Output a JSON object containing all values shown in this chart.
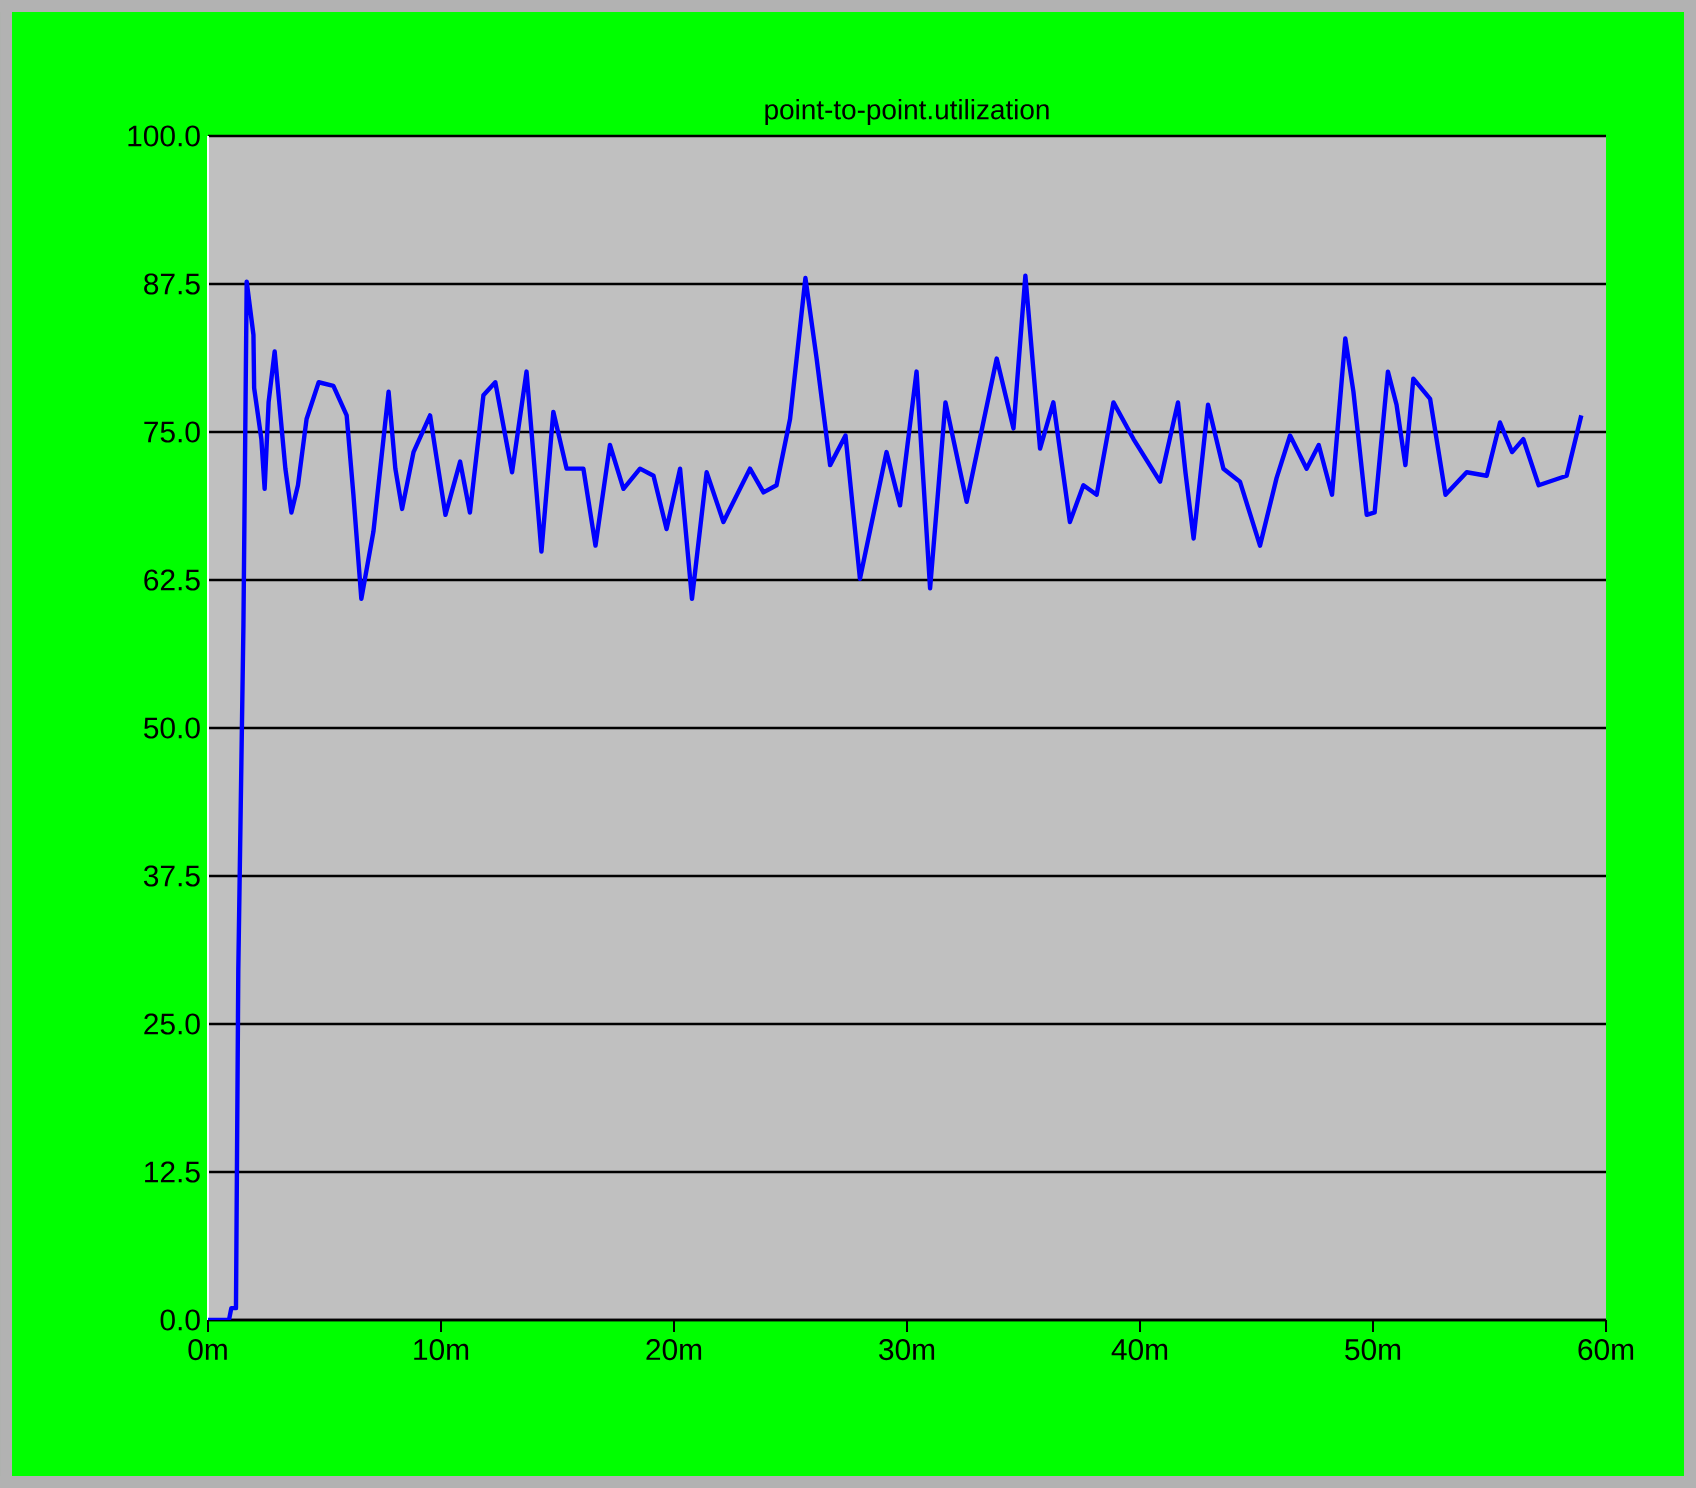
{
  "chart_data": {
    "type": "line",
    "title": "point-to-point.utilization",
    "x": [
      0,
      0.9,
      1.0,
      1.2,
      1.3,
      1.52,
      1.66,
      1.95,
      1.98,
      2.29,
      2.43,
      2.6,
      2.86,
      3.03,
      3.32,
      3.58,
      3.86,
      4.23,
      4.75,
      5.38,
      5.95,
      6.24,
      6.58,
      7.1,
      7.75,
      8.04,
      8.33,
      8.82,
      9.53,
      9.81,
      10.19,
      10.82,
      11.24,
      11.82,
      12.33,
      13.05,
      13.67,
      14.31,
      14.82,
      15.39,
      16.11,
      16.63,
      17.25,
      17.83,
      18.54,
      19.12,
      19.68,
      20.26,
      20.77,
      21.4,
      22.12,
      23.26,
      23.84,
      24.4,
      24.98,
      25.64,
      26.12,
      26.7,
      27.36,
      27.98,
      29.12,
      29.7,
      30.41,
      30.99,
      31.65,
      32.56,
      33.85,
      34.57,
      35.08,
      35.71,
      36.28,
      36.99,
      37.57,
      38.14,
      38.86,
      39.72,
      40.86,
      41.63,
      41.95,
      42.3,
      42.92,
      43.58,
      44.29,
      45.15,
      45.86,
      46.44,
      47.15,
      47.67,
      48.24,
      48.81,
      49.16,
      49.73,
      50.07,
      50.64,
      51.01,
      51.39,
      51.73,
      52.45,
      53.11,
      54.02,
      54.88,
      55.45,
      55.97,
      56.45,
      57.11,
      58.31,
      58.94
    ],
    "series": [
      {
        "color": "#0000ff",
        "values": [
          0,
          0,
          1,
          1,
          29.6,
          58.7,
          87.7,
          83.2,
          78.7,
          74.4,
          70.2,
          77.5,
          81.8,
          78.1,
          71.9,
          68.2,
          70.5,
          76.1,
          79.2,
          78.9,
          76.4,
          69.7,
          60.9,
          66.6,
          78.4,
          71.9,
          68.5,
          73.3,
          76.4,
          72.8,
          68.0,
          72.5,
          68.2,
          78.1,
          79.2,
          71.6,
          80.1,
          64.9,
          76.7,
          71.9,
          71.9,
          65.4,
          73.9,
          70.2,
          71.9,
          71.3,
          66.8,
          71.9,
          60.9,
          71.6,
          67.4,
          71.9,
          69.9,
          70.5,
          76.1,
          88.0,
          81.2,
          72.2,
          74.7,
          62.6,
          73.3,
          68.8,
          80.1,
          61.8,
          77.5,
          69.1,
          81.2,
          75.3,
          88.2,
          73.6,
          77.5,
          67.4,
          70.5,
          69.7,
          77.5,
          74.4,
          70.8,
          77.5,
          71.6,
          66.0,
          77.3,
          71.9,
          70.8,
          65.4,
          71.1,
          74.7,
          71.9,
          73.9,
          69.7,
          82.9,
          78.4,
          68.0,
          68.2,
          80.1,
          77.3,
          72.2,
          79.5,
          77.8,
          69.7,
          71.6,
          71.3,
          75.8,
          73.3,
          74.4,
          70.5,
          71.3,
          76.4
        ]
      }
    ],
    "xlim": [
      0,
      60
    ],
    "xticks": [
      {
        "value": 0,
        "label": "0m"
      },
      {
        "value": 10,
        "label": "10m"
      },
      {
        "value": 20,
        "label": "20m"
      },
      {
        "value": 30,
        "label": "30m"
      },
      {
        "value": 40,
        "label": "40m"
      },
      {
        "value": 50,
        "label": "50m"
      },
      {
        "value": 60,
        "label": "60m"
      }
    ],
    "ylim": [
      0,
      100
    ],
    "yticks": [
      {
        "value": 0,
        "label": "0.0"
      },
      {
        "value": 12.5,
        "label": "12.5"
      },
      {
        "value": 25,
        "label": "25.0"
      },
      {
        "value": 37.5,
        "label": "37.5"
      },
      {
        "value": 50,
        "label": "50.0"
      },
      {
        "value": 62.5,
        "label": "62.5"
      },
      {
        "value": 75,
        "label": "75.0"
      },
      {
        "value": 87.5,
        "label": "87.5"
      },
      {
        "value": 100,
        "label": "100.0"
      }
    ],
    "grid": "y",
    "marker": "none",
    "line_style": "solid"
  }
}
